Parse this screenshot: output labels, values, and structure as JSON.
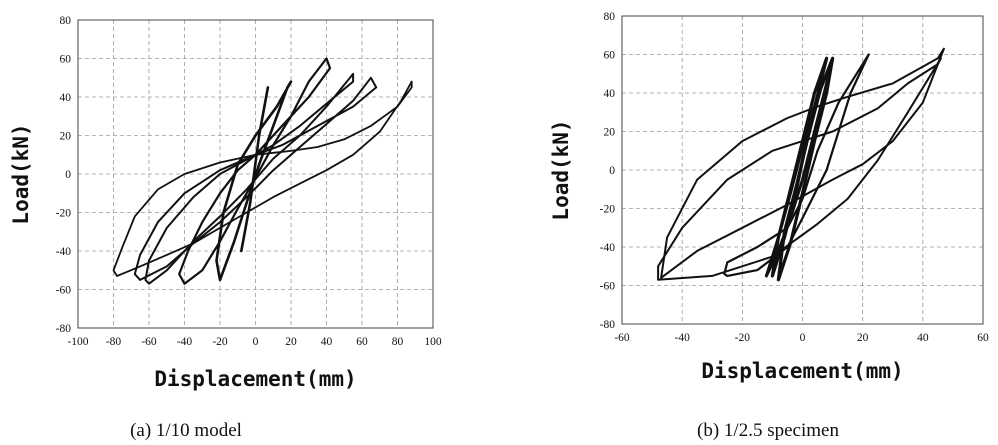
{
  "chart_data": [
    {
      "type": "line",
      "xlabel": "Displacement(mm)",
      "ylabel": "Load(kN)",
      "xlim": [
        -100,
        100
      ],
      "ylim": [
        -80,
        80
      ],
      "x_ticks": [
        -100,
        -80,
        -60,
        -40,
        -20,
        0,
        20,
        40,
        60,
        80,
        100
      ],
      "y_ticks": [
        -80,
        -60,
        -40,
        -20,
        0,
        20,
        40,
        60,
        80
      ],
      "grid": true,
      "caption": "(a) 1/10 model",
      "series": [
        {
          "x": [
            -8,
            -3,
            2,
            7,
            2,
            -3,
            -8
          ],
          "y": [
            -40,
            -15,
            20,
            45,
            20,
            -15,
            -40
          ]
        },
        {
          "x": [
            -20,
            -12,
            -5,
            2,
            10,
            18,
            20,
            12,
            0,
            -10,
            -18,
            -22,
            -20
          ],
          "y": [
            -55,
            -35,
            -15,
            5,
            25,
            45,
            48,
            35,
            20,
            5,
            -20,
            -45,
            -55
          ]
        },
        {
          "x": [
            -40,
            -30,
            -20,
            -10,
            0,
            10,
            20,
            30,
            40,
            42,
            30,
            15,
            5,
            0,
            -10,
            -20,
            -30,
            -38,
            -43,
            -40
          ],
          "y": [
            -57,
            -50,
            -35,
            -18,
            -2,
            15,
            30,
            48,
            60,
            55,
            40,
            25,
            15,
            10,
            2,
            -10,
            -25,
            -40,
            -52,
            -57
          ]
        },
        {
          "x": [
            -60,
            -50,
            -35,
            -20,
            -5,
            10,
            25,
            40,
            55,
            55,
            42,
            25,
            10,
            0,
            -20,
            -35,
            -50,
            -60,
            -62,
            -60
          ],
          "y": [
            -57,
            -50,
            -35,
            -22,
            -8,
            8,
            20,
            35,
            52,
            48,
            38,
            25,
            15,
            10,
            0,
            -12,
            -28,
            -45,
            -55,
            -57
          ]
        },
        {
          "x": [
            -65,
            -50,
            -35,
            -20,
            -5,
            10,
            25,
            40,
            55,
            65,
            68,
            55,
            35,
            15,
            0,
            -20,
            -40,
            -55,
            -65,
            -68,
            -65
          ],
          "y": [
            -55,
            -48,
            -36,
            -25,
            -12,
            2,
            14,
            26,
            38,
            50,
            45,
            35,
            25,
            15,
            10,
            2,
            -10,
            -25,
            -42,
            -52,
            -55
          ]
        },
        {
          "x": [
            -78,
            -65,
            -50,
            -35,
            -20,
            -5,
            10,
            25,
            40,
            55,
            70,
            82,
            88,
            88,
            80,
            65,
            50,
            35,
            20,
            10,
            0,
            -20,
            -40,
            -55,
            -68,
            -75,
            -80,
            -78
          ],
          "y": [
            -53,
            -48,
            -42,
            -36,
            -28,
            -20,
            -12,
            -5,
            2,
            10,
            22,
            38,
            48,
            45,
            35,
            25,
            18,
            14,
            12,
            11,
            10,
            6,
            0,
            -8,
            -22,
            -38,
            -50,
            -53
          ]
        }
      ]
    },
    {
      "type": "line",
      "xlabel": "Displacement(mm)",
      "ylabel": "Load(kN)",
      "xlim": [
        -60,
        60
      ],
      "ylim": [
        -80,
        80
      ],
      "x_ticks": [
        -60,
        -40,
        -20,
        0,
        20,
        40,
        60
      ],
      "y_ticks": [
        -80,
        -60,
        -40,
        -20,
        0,
        20,
        40,
        60,
        80
      ],
      "grid": true,
      "caption": "(b) 1/2.5 specimen",
      "series": [
        {
          "x": [
            -10,
            -6,
            -2,
            2,
            6,
            8,
            4,
            0,
            -4,
            -8,
            -10
          ],
          "y": [
            -55,
            -35,
            -10,
            20,
            45,
            58,
            40,
            15,
            -10,
            -35,
            -55
          ]
        },
        {
          "x": [
            -8,
            -4,
            0,
            4,
            8,
            10,
            6,
            2,
            -2,
            -6,
            -8
          ],
          "y": [
            -57,
            -38,
            -12,
            15,
            40,
            58,
            42,
            18,
            -8,
            -32,
            -57
          ]
        },
        {
          "x": [
            -12,
            -8,
            -4,
            0,
            4,
            8,
            10,
            5,
            0,
            -4,
            -8,
            -12
          ],
          "y": [
            -55,
            -42,
            -25,
            -5,
            20,
            45,
            58,
            38,
            12,
            -12,
            -35,
            -55
          ]
        },
        {
          "x": [
            -25,
            -15,
            -5,
            0,
            8,
            16,
            22,
            20,
            12,
            5,
            0,
            -5,
            -15,
            -25,
            -26,
            -25
          ],
          "y": [
            -55,
            -52,
            -40,
            -25,
            0,
            40,
            60,
            55,
            35,
            10,
            -15,
            -30,
            -40,
            -48,
            -54,
            -55
          ]
        },
        {
          "x": [
            -48,
            -30,
            -10,
            5,
            15,
            25,
            35,
            46,
            45,
            35,
            25,
            10,
            0,
            -10,
            -25,
            -40,
            -48,
            -48
          ],
          "y": [
            -57,
            -55,
            -45,
            -28,
            -15,
            5,
            30,
            58,
            55,
            45,
            32,
            20,
            15,
            10,
            -5,
            -30,
            -50,
            -57
          ]
        },
        {
          "x": [
            -47,
            -35,
            -20,
            -5,
            10,
            20,
            30,
            40,
            47,
            45,
            30,
            15,
            5,
            -5,
            -20,
            -35,
            -45,
            -47
          ],
          "y": [
            -56,
            -42,
            -30,
            -18,
            -5,
            3,
            15,
            35,
            63,
            58,
            45,
            38,
            33,
            27,
            15,
            -5,
            -35,
            -56
          ]
        }
      ]
    }
  ]
}
